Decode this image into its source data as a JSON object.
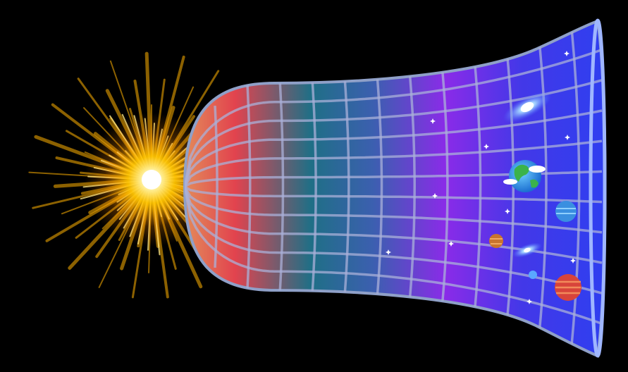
{
  "scene": {
    "background": "#000000",
    "subject": "universe-expansion",
    "icons": [
      "burst-icon",
      "spacetime-funnel-icon",
      "galaxy-icon",
      "earth-icon",
      "planet-icon",
      "star-icon"
    ]
  },
  "colors": {
    "burst_core": "#fffbe6",
    "burst_ray": "#ffb000",
    "funnel_red": "#e2434e",
    "funnel_teal": "#1f6f86",
    "funnel_purple": "#8a2be8",
    "funnel_blue": "#3b3cf0",
    "grid_line": "#a9b0d8",
    "rim": "#9fb6ff"
  }
}
